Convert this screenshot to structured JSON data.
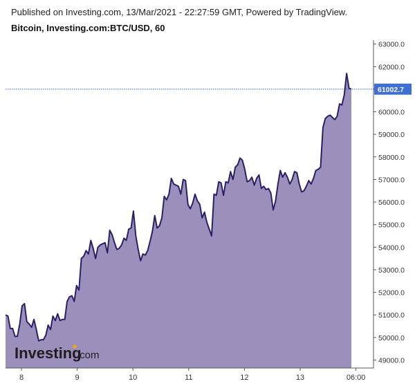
{
  "header": {
    "published": "Published on Investing.com, 13/Mar/2021 - 22:27:59 GMT, Powered by TradingView.",
    "symbol": "Bitcoin, Investing.com:BTC/USD, 60"
  },
  "logo": {
    "word": "Investing",
    "suffix": ".com"
  },
  "colors": {
    "area_fill": "#9b8fbb",
    "line": "#2a1f66",
    "last_price_bg": "#3d6fd6",
    "dotted": "#2b55b5"
  },
  "chart_data": {
    "type": "area",
    "ylim": [
      48600,
      63400
    ],
    "y_ticks": [
      "49000.0",
      "50000.0",
      "51000.0",
      "52000.0",
      "53000.0",
      "54000.0",
      "55000.0",
      "56000.0",
      "57000.0",
      "58000.0",
      "59000.0",
      "60000.0",
      "61000.0",
      "62000.0",
      "63000.0"
    ],
    "x_ticks": [
      {
        "label": "8",
        "t": 4
      },
      {
        "label": "9",
        "t": 24
      },
      {
        "label": "10",
        "t": 44
      },
      {
        "label": "11",
        "t": 64
      },
      {
        "label": "12",
        "t": 84
      },
      {
        "label": "13",
        "t": 104
      },
      {
        "label": "06:00",
        "t": 124
      }
    ],
    "last_price": "61002.7",
    "last_value": 61002.7,
    "values": [
      51000,
      50950,
      50400,
      50400,
      50050,
      50050,
      50600,
      51400,
      51500,
      50700,
      50600,
      50450,
      50800,
      50350,
      49850,
      49900,
      49900,
      50100,
      50550,
      50350,
      50950,
      50750,
      51050,
      50750,
      50800,
      50800,
      51600,
      51800,
      51850,
      51600,
      52300,
      52100,
      53500,
      53600,
      53850,
      53700,
      54300,
      53950,
      53500,
      54000,
      54100,
      54150,
      54200,
      53750,
      54750,
      54550,
      54200,
      53900,
      53950,
      54100,
      54400,
      54300,
      54800,
      54850,
      55600,
      54500,
      53900,
      53400,
      53700,
      53650,
      53850,
      54250,
      54700,
      55400,
      54850,
      54950,
      55300,
      56250,
      56100,
      56350,
      57050,
      56800,
      56750,
      56700,
      56350,
      57000,
      56950,
      55900,
      55700,
      55950,
      56350,
      56050,
      55900,
      55300,
      55550,
      55100,
      54800,
      54500,
      56350,
      56300,
      56900,
      56850,
      56300,
      56900,
      56850,
      57350,
      57000,
      57550,
      57650,
      57950,
      57850,
      57450,
      56900,
      56950,
      57100,
      56750,
      57050,
      57200,
      56600,
      56700,
      56550,
      56600,
      56400,
      55650,
      56050,
      56800,
      57400,
      57100,
      57300,
      57100,
      56800,
      57000,
      57350,
      57300,
      56800,
      56450,
      56500,
      56700,
      56950,
      56800,
      57050,
      57400,
      57450,
      57550,
      59300,
      59700,
      59800,
      59850,
      59750,
      59650,
      59800,
      60350,
      60300,
      60750,
      61700,
      61050,
      61002.7
    ]
  }
}
